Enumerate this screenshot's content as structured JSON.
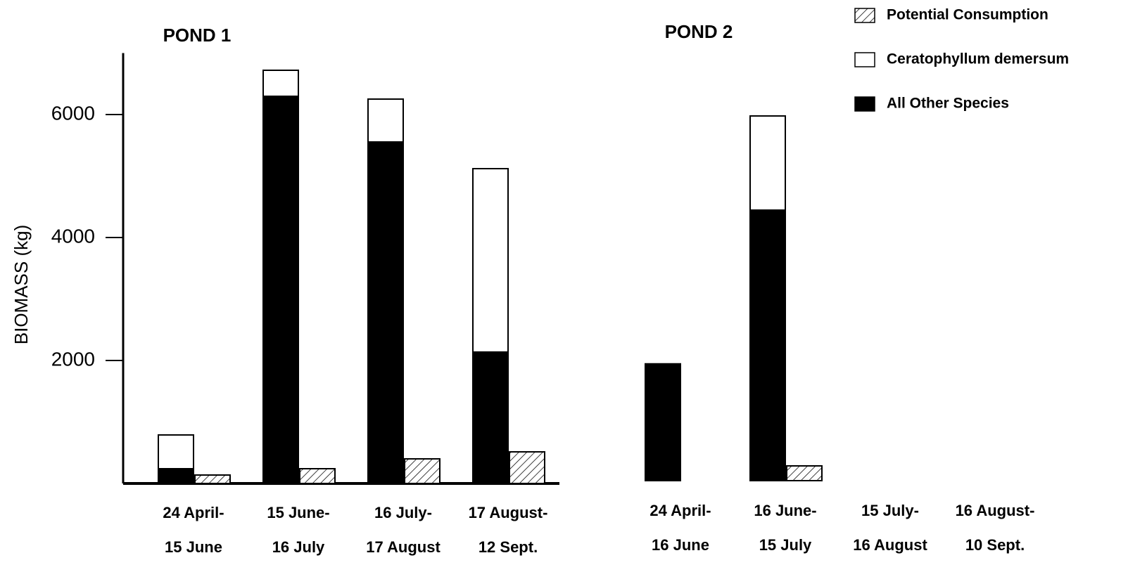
{
  "chart_data": [
    {
      "type": "bar",
      "title": "POND 1",
      "y_label": "BIOMASS (kg)",
      "categories": [
        [
          "24 April-",
          "15 June"
        ],
        [
          "15 June-",
          "16 July"
        ],
        [
          "16 July-",
          "17 August"
        ],
        [
          "17 August-",
          "12 Sept."
        ]
      ],
      "series": [
        {
          "color": "#ffffff",
          "hatch": true,
          "values": [
            137,
            240,
            400,
            514
          ]
        },
        {
          "color": "#ffffff",
          "values": [
            549,
            423,
            697,
            2983
          ]
        },
        {
          "color": "#000000",
          "values": [
            240,
            6297,
            5554,
            2137
          ]
        }
      ],
      "ylim": [
        0,
        7000
      ],
      "yticks": [
        2000,
        4000,
        6000
      ]
    },
    {
      "type": "bar",
      "title": "POND 2",
      "categories": [
        [
          "24 April-",
          "16 June"
        ],
        [
          "16 June-",
          "15 July"
        ],
        [
          "15 July-",
          "16 August"
        ],
        [
          "16 August-",
          "10 Sept."
        ]
      ],
      "series": [
        {
          "name": "Potential Consumption",
          "color": "#ffffff",
          "hatch": true,
          "values": [
            null,
            240,
            null,
            null
          ]
        },
        {
          "name": "Ceratophyllum demersum",
          "color": "#ffffff",
          "values": [
            null,
            1531,
            null,
            null
          ]
        },
        {
          "name": "All  Other Species",
          "color": "#000000",
          "values": [
            1900,
            4400,
            null,
            null
          ]
        }
      ],
      "ylim": [
        0,
        7000
      ]
    }
  ]
}
